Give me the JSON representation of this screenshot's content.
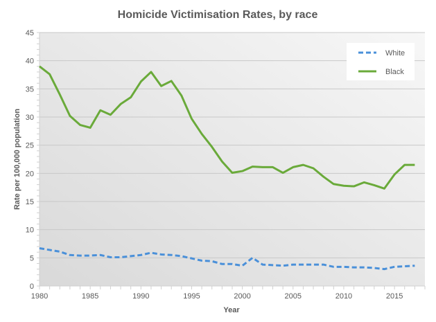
{
  "chart_data": {
    "type": "line",
    "title": "Homicide Victimisation Rates, by race",
    "xlabel": "Year",
    "ylabel": "Rate per 100,000 population",
    "xlim": [
      1980,
      2018
    ],
    "ylim": [
      0,
      45
    ],
    "x_ticks": [
      1980,
      1985,
      1990,
      1995,
      2000,
      2005,
      2010,
      2015
    ],
    "y_ticks": [
      0,
      5,
      10,
      15,
      20,
      25,
      30,
      35,
      40,
      45
    ],
    "grid": true,
    "legend_position": "top-right",
    "x": [
      1980,
      1981,
      1982,
      1983,
      1984,
      1985,
      1986,
      1987,
      1988,
      1989,
      1990,
      1991,
      1992,
      1993,
      1994,
      1995,
      1996,
      1997,
      1998,
      1999,
      2000,
      2001,
      2002,
      2003,
      2004,
      2005,
      2006,
      2007,
      2008,
      2009,
      2010,
      2011,
      2012,
      2013,
      2014,
      2015,
      2016,
      2017
    ],
    "series": [
      {
        "name": "White",
        "color": "#4a90d9",
        "dash": "dashed",
        "values": [
          6.7,
          6.4,
          6.1,
          5.5,
          5.4,
          5.4,
          5.5,
          5.1,
          5.1,
          5.3,
          5.5,
          5.9,
          5.6,
          5.5,
          5.3,
          4.9,
          4.5,
          4.4,
          3.9,
          3.9,
          3.6,
          5.0,
          3.8,
          3.7,
          3.6,
          3.8,
          3.8,
          3.8,
          3.8,
          3.4,
          3.4,
          3.3,
          3.3,
          3.2,
          3.0,
          3.4,
          3.5,
          3.6
        ]
      },
      {
        "name": "Black",
        "color": "#6aaa3a",
        "dash": "solid",
        "values": [
          39.0,
          37.6,
          34.0,
          30.2,
          28.6,
          28.1,
          31.2,
          30.4,
          32.3,
          33.5,
          36.3,
          38.0,
          35.5,
          36.4,
          33.8,
          29.7,
          27.0,
          24.7,
          22.1,
          20.1,
          20.4,
          21.2,
          21.1,
          21.1,
          20.1,
          21.1,
          21.5,
          20.9,
          19.4,
          18.1,
          17.8,
          17.7,
          18.4,
          17.9,
          17.3,
          19.8,
          21.5,
          21.5
        ]
      }
    ]
  }
}
